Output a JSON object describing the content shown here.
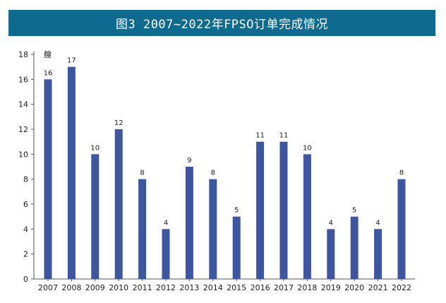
{
  "title": "图3 2007~2022年FPSO订单完成情况",
  "chart_data": {
    "type": "bar",
    "title": "图3 2007~2022年FPSO订单完成情况",
    "ylabel": "艘",
    "xlabel": "",
    "categories": [
      "2007",
      "2008",
      "2009",
      "2010",
      "2011",
      "2012",
      "2013",
      "2014",
      "2015",
      "2016",
      "2017",
      "2018",
      "2019",
      "2020",
      "2021",
      "2022"
    ],
    "values": [
      16,
      17,
      10,
      12,
      8,
      4,
      9,
      8,
      5,
      11,
      11,
      10,
      4,
      5,
      4,
      8
    ],
    "ylim": [
      0,
      18
    ],
    "yticks": [
      "0",
      "2",
      "4",
      "6",
      "8",
      "10",
      "12",
      "14",
      "16",
      "18"
    ],
    "grid": false,
    "legend": "none",
    "colors": {
      "bar": "#3e56a0",
      "title_bar": "#0e6a8e",
      "axis": "#555555"
    }
  }
}
